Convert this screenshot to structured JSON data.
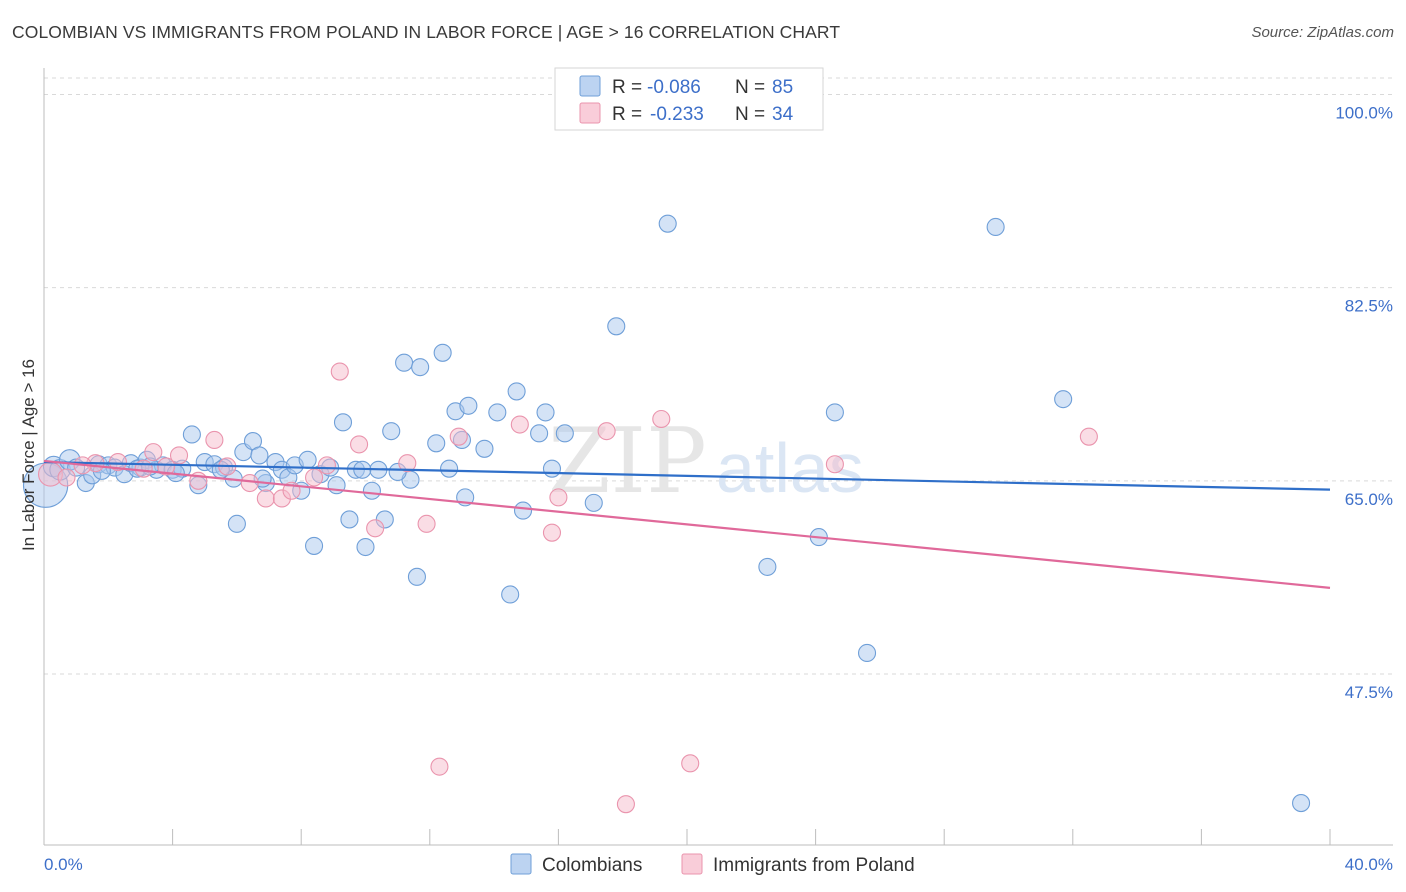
{
  "title": "COLOMBIAN VS IMMIGRANTS FROM POLAND IN LABOR FORCE | AGE > 16 CORRELATION CHART",
  "source": "Source: ZipAtlas.com",
  "watermark": {
    "zip": "ZIP",
    "atlas": "atlas"
  },
  "colors": {
    "blue_fill": "#a9c8ee",
    "blue_stroke": "#6f9fd8",
    "blue_line": "#2f6fc9",
    "pink_fill": "#f6bccb",
    "pink_stroke": "#ea94ad",
    "pink_line": "#e0699a",
    "grid": "#d9d9d9",
    "axis_text": "#3d6fc9"
  },
  "legend": {
    "rows": [
      {
        "r_label": "R =",
        "r_value": "-0.086",
        "n_label": "N =",
        "n_value": "85",
        "color": "blue"
      },
      {
        "r_label": "R =",
        "r_value": "-0.233",
        "n_label": "N =",
        "n_value": "34",
        "color": "pink"
      }
    ]
  },
  "bottom_legend": [
    {
      "label": "Colombians",
      "color": "blue"
    },
    {
      "label": "Immigrants from Poland",
      "color": "pink"
    }
  ],
  "chart_data": {
    "type": "scatter",
    "title": "COLOMBIAN VS IMMIGRANTS FROM POLAND IN LABOR FORCE | AGE > 16 CORRELATION CHART",
    "xlabel": "",
    "ylabel": "In Labor Force | Age > 16",
    "xlim": [
      0,
      40
    ],
    "ylim": [
      32,
      101.5
    ],
    "x_tick_labels": [
      "0.0%",
      "40.0%"
    ],
    "y_ticks": [
      47.5,
      65.0,
      82.5,
      100.0
    ],
    "y_tick_labels": [
      "47.5%",
      "65.0%",
      "82.5%",
      "100.0%"
    ],
    "grid": true,
    "legend_position": "top-center",
    "series": [
      {
        "name": "Colombians",
        "color": "blue",
        "trend": {
          "x": [
            0,
            40
          ],
          "y": [
            66.7,
            64.2
          ]
        },
        "points": [
          [
            0.05,
            64.6,
            26
          ],
          [
            0.3,
            66.3,
            12
          ],
          [
            0.5,
            66.0,
            12
          ],
          [
            0.8,
            66.9,
            12
          ],
          [
            1.0,
            66.2,
            10
          ],
          [
            1.3,
            64.8,
            10
          ],
          [
            1.5,
            65.5,
            10
          ],
          [
            1.7,
            66.5,
            10
          ],
          [
            2.0,
            66.4,
            10
          ],
          [
            2.2,
            66.2,
            10
          ],
          [
            2.5,
            65.6,
            10
          ],
          [
            2.7,
            66.6,
            10
          ],
          [
            3.0,
            66.2,
            10
          ],
          [
            3.2,
            66.9,
            10
          ],
          [
            3.5,
            66.0,
            10
          ],
          [
            3.7,
            66.4,
            10
          ],
          [
            4.0,
            66.0,
            10
          ],
          [
            4.3,
            66.1,
            10
          ],
          [
            4.6,
            69.2,
            10
          ],
          [
            4.8,
            64.6,
            10
          ],
          [
            5.0,
            66.7,
            10
          ],
          [
            5.3,
            66.5,
            10
          ],
          [
            5.6,
            66.2,
            10
          ],
          [
            5.9,
            65.2,
            10
          ],
          [
            6.0,
            61.1,
            10
          ],
          [
            6.2,
            67.6,
            10
          ],
          [
            6.5,
            68.6,
            10
          ],
          [
            6.7,
            67.3,
            10
          ],
          [
            6.9,
            64.8,
            10
          ],
          [
            7.2,
            66.7,
            10
          ],
          [
            7.4,
            66.0,
            10
          ],
          [
            7.6,
            65.3,
            10
          ],
          [
            7.8,
            66.4,
            10
          ],
          [
            8.0,
            64.1,
            10
          ],
          [
            8.2,
            66.9,
            10
          ],
          [
            8.4,
            59.1,
            10
          ],
          [
            8.6,
            65.6,
            10
          ],
          [
            8.9,
            66.2,
            10
          ],
          [
            9.1,
            64.6,
            10
          ],
          [
            9.3,
            70.3,
            10
          ],
          [
            9.5,
            61.5,
            10
          ],
          [
            9.7,
            66.0,
            10
          ],
          [
            10.0,
            59.0,
            10
          ],
          [
            10.2,
            64.1,
            10
          ],
          [
            10.4,
            66.0,
            10
          ],
          [
            10.6,
            61.5,
            10
          ],
          [
            10.8,
            69.5,
            10
          ],
          [
            11.2,
            75.7,
            10
          ],
          [
            11.4,
            65.1,
            10
          ],
          [
            11.6,
            56.3,
            10
          ],
          [
            11.7,
            75.3,
            10
          ],
          [
            12.2,
            68.4,
            10
          ],
          [
            12.4,
            76.6,
            10
          ],
          [
            12.6,
            66.1,
            10
          ],
          [
            12.8,
            71.3,
            10
          ],
          [
            13.0,
            68.7,
            10
          ],
          [
            13.1,
            63.5,
            10
          ],
          [
            13.2,
            71.8,
            10
          ],
          [
            13.7,
            67.9,
            10
          ],
          [
            14.1,
            71.2,
            10
          ],
          [
            14.5,
            54.7,
            10
          ],
          [
            14.7,
            73.1,
            10
          ],
          [
            14.9,
            62.3,
            10
          ],
          [
            15.4,
            69.3,
            10
          ],
          [
            15.6,
            71.2,
            10
          ],
          [
            16.2,
            69.3,
            10
          ],
          [
            15.8,
            66.1,
            10
          ],
          [
            17.1,
            63.0,
            10
          ],
          [
            17.8,
            79.0,
            10
          ],
          [
            19.4,
            88.3,
            10
          ],
          [
            22.5,
            57.2,
            10
          ],
          [
            24.1,
            59.9,
            10
          ],
          [
            24.6,
            71.2,
            10
          ],
          [
            25.6,
            49.4,
            10
          ],
          [
            29.6,
            88.0,
            10
          ],
          [
            31.7,
            72.4,
            10
          ],
          [
            39.1,
            35.8,
            10
          ],
          [
            1.8,
            65.9,
            10
          ],
          [
            2.9,
            66.1,
            10
          ],
          [
            4.1,
            65.7,
            10
          ],
          [
            6.8,
            65.2,
            10
          ],
          [
            9.9,
            66.0,
            10
          ],
          [
            11.0,
            65.8,
            10
          ],
          [
            3.3,
            66.3,
            10
          ],
          [
            5.5,
            66.0,
            10
          ]
        ]
      },
      {
        "name": "Immigrants from Poland",
        "color": "pink",
        "trend": {
          "x": [
            0,
            40
          ],
          "y": [
            66.8,
            55.3
          ]
        },
        "points": [
          [
            0.2,
            65.6,
            14
          ],
          [
            0.7,
            65.3,
            10
          ],
          [
            1.6,
            66.6,
            10
          ],
          [
            2.3,
            66.7,
            10
          ],
          [
            3.1,
            66.1,
            10
          ],
          [
            3.4,
            67.6,
            10
          ],
          [
            3.8,
            66.3,
            10
          ],
          [
            4.2,
            67.3,
            10
          ],
          [
            4.8,
            65.0,
            10
          ],
          [
            5.3,
            68.7,
            10
          ],
          [
            5.7,
            66.3,
            10
          ],
          [
            6.4,
            64.8,
            10
          ],
          [
            6.9,
            63.4,
            10
          ],
          [
            7.4,
            63.4,
            10
          ],
          [
            7.7,
            64.1,
            10
          ],
          [
            8.4,
            65.3,
            10
          ],
          [
            8.8,
            66.4,
            10
          ],
          [
            9.2,
            74.9,
            10
          ],
          [
            9.8,
            68.3,
            10
          ],
          [
            10.3,
            60.7,
            10
          ],
          [
            11.3,
            66.6,
            10
          ],
          [
            11.9,
            61.1,
            10
          ],
          [
            12.3,
            39.1,
            10
          ],
          [
            12.9,
            69.0,
            10
          ],
          [
            14.8,
            70.1,
            10
          ],
          [
            15.8,
            60.3,
            10
          ],
          [
            16.0,
            63.5,
            10
          ],
          [
            17.5,
            69.5,
            10
          ],
          [
            18.1,
            35.7,
            10
          ],
          [
            19.2,
            70.6,
            10
          ],
          [
            20.1,
            39.4,
            10
          ],
          [
            24.6,
            66.5,
            10
          ],
          [
            32.5,
            69.0,
            10
          ],
          [
            1.2,
            66.4,
            10
          ]
        ]
      }
    ]
  }
}
